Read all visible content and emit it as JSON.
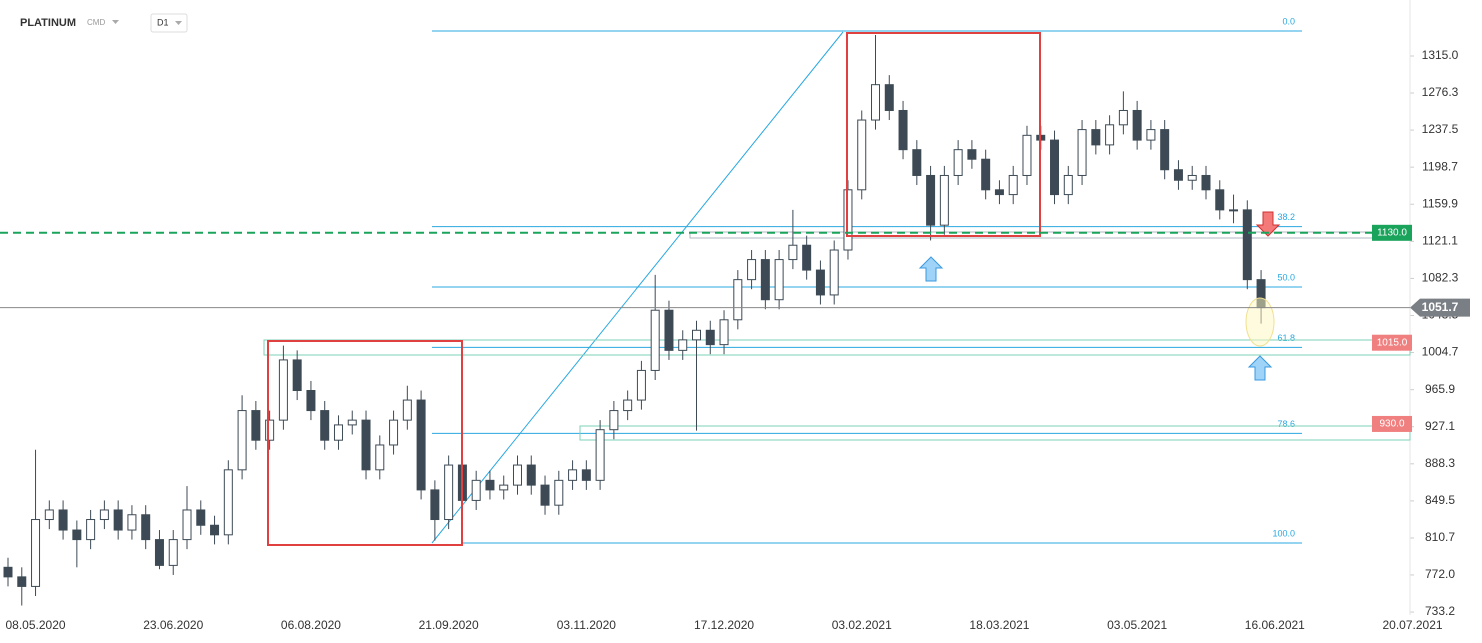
{
  "chart_data": {
    "type": "candlestick",
    "title": "PLATINUM",
    "instrument_type": "CMD",
    "interval": "D1",
    "up_color": "#ffffff",
    "down_color": "#3d4a55",
    "categories": [
      null,
      null,
      "08.05.2020",
      null,
      null,
      null,
      null,
      null,
      null,
      null,
      null,
      null,
      "23.06.2020",
      null,
      null,
      null,
      null,
      null,
      null,
      null,
      null,
      null,
      "06.08.2020",
      null,
      null,
      null,
      null,
      null,
      null,
      null,
      null,
      null,
      "21.09.2020",
      null,
      null,
      null,
      null,
      null,
      null,
      null,
      null,
      null,
      "03.11.2020",
      null,
      null,
      null,
      null,
      null,
      null,
      null,
      null,
      null,
      "17.12.2020",
      null,
      null,
      null,
      null,
      null,
      null,
      null,
      null,
      null,
      "03.02.2021",
      null,
      null,
      null,
      null,
      null,
      null,
      null,
      null,
      null,
      "18.03.2021",
      null,
      null,
      null,
      null,
      null,
      null,
      null,
      null,
      null,
      "03.05.2021",
      null,
      null,
      null,
      null,
      null,
      null,
      null,
      null,
      null,
      "16.06.2021",
      null,
      null,
      null,
      null,
      null,
      null,
      null,
      null,
      null,
      "20.07.2021"
    ],
    "open": [
      780,
      770,
      760,
      830,
      840,
      819,
      809,
      830,
      840,
      819,
      835,
      809,
      782,
      809,
      840,
      824,
      814,
      882,
      944,
      913,
      934,
      997,
      965,
      944,
      913,
      929,
      934,
      882,
      908,
      934,
      955,
      861,
      830,
      887,
      850,
      871,
      861,
      866,
      887,
      866,
      845,
      871,
      882,
      871,
      924,
      944,
      955,
      986,
      1049,
      1007,
      1018,
      1028,
      1013,
      1039,
      1081,
      1102,
      1060,
      1102,
      1117,
      1091,
      1065,
      1112,
      1175,
      1248,
      1285,
      1258,
      1217,
      1190,
      1138,
      1190,
      1217,
      1207,
      1175,
      1170,
      1190,
      1232,
      1227,
      1170,
      1190,
      1238,
      1222,
      1243,
      1258,
      1227,
      1238,
      1196,
      1185,
      1190,
      1175,
      1154,
      1154,
      1081,
      null,
      null,
      null,
      null,
      null,
      null,
      null,
      null,
      null,
      null,
      null
    ],
    "high": [
      790,
      780,
      903,
      850,
      850,
      829,
      840,
      850,
      850,
      845,
      845,
      819,
      819,
      865,
      850,
      834,
      892,
      960,
      954,
      944,
      1012,
      1007,
      975,
      954,
      939,
      944,
      944,
      918,
      944,
      970,
      965,
      871,
      897,
      897,
      881,
      881,
      876,
      897,
      897,
      876,
      881,
      892,
      892,
      934,
      954,
      965,
      996,
      1086,
      1059,
      1028,
      1038,
      1038,
      1049,
      1091,
      1112,
      1112,
      1112,
      1154,
      1127,
      1101,
      1122,
      1185,
      1258,
      1337,
      1295,
      1268,
      1227,
      1200,
      1200,
      1227,
      1227,
      1217,
      1185,
      1200,
      1242,
      1242,
      1237,
      1200,
      1248,
      1248,
      1253,
      1278,
      1268,
      1248,
      1248,
      1206,
      1200,
      1200,
      1185,
      1170,
      1164,
      1091,
      null,
      null,
      null,
      null,
      null,
      null,
      null,
      null,
      null,
      null,
      null
    ],
    "low": [
      760,
      740,
      750,
      820,
      809,
      780,
      799,
      820,
      809,
      809,
      799,
      778,
      772,
      799,
      814,
      804,
      804,
      872,
      903,
      903,
      924,
      955,
      934,
      903,
      903,
      919,
      872,
      872,
      898,
      924,
      851,
      808,
      820,
      840,
      840,
      851,
      851,
      856,
      856,
      835,
      835,
      861,
      861,
      861,
      914,
      934,
      945,
      976,
      997,
      997,
      923,
      1003,
      1003,
      1029,
      1071,
      1050,
      1050,
      1092,
      1081,
      1055,
      1055,
      1102,
      1165,
      1238,
      1248,
      1207,
      1180,
      1122,
      1128,
      1180,
      1197,
      1165,
      1160,
      1160,
      1180,
      1217,
      1160,
      1160,
      1180,
      1212,
      1212,
      1233,
      1217,
      1217,
      1186,
      1175,
      1175,
      1165,
      1144,
      1140,
      1071,
      1035,
      null,
      null,
      null,
      null,
      null,
      null,
      null,
      null,
      null,
      null,
      null
    ],
    "close": [
      770,
      760,
      830,
      840,
      819,
      809,
      830,
      840,
      819,
      835,
      809,
      782,
      809,
      840,
      824,
      814,
      882,
      944,
      913,
      934,
      997,
      965,
      944,
      913,
      929,
      934,
      882,
      908,
      934,
      955,
      861,
      830,
      887,
      850,
      871,
      861,
      866,
      887,
      866,
      845,
      871,
      882,
      871,
      924,
      944,
      955,
      986,
      1049,
      1007,
      1018,
      1028,
      1013,
      1039,
      1081,
      1102,
      1060,
      1102,
      1117,
      1091,
      1065,
      1112,
      1175,
      1248,
      1285,
      1258,
      1217,
      1190,
      1138,
      1190,
      1217,
      1207,
      1175,
      1170,
      1190,
      1232,
      1227,
      1170,
      1190,
      1238,
      1222,
      1243,
      1258,
      1227,
      1238,
      1196,
      1185,
      1190,
      1175,
      1154,
      1154,
      1081,
      1051.7,
      null,
      null,
      null,
      null,
      null,
      null,
      null,
      null,
      null,
      null,
      null
    ],
    "ylim": [
      730.1,
      1373.6
    ],
    "yticks": [
      733.2,
      {
        "value": 772,
        "label": "772.0"
      },
      {
        "value": 810.7,
        "label": "810.7"
      },
      {
        "value": 849.5,
        "label": "849.5"
      },
      {
        "value": 888.3,
        "label": "888.3"
      },
      {
        "value": 927.1,
        "label": "927.1"
      },
      {
        "value": 965.9,
        "label": "965.9"
      },
      {
        "value": 1004.7,
        "label": "1004.7"
      },
      {
        "value": 1043.5,
        "label": "1043.5"
      },
      {
        "value": 1082.3,
        "label": "1082.3"
      },
      {
        "value": 1121.1,
        "label": "1121.1"
      },
      {
        "value": 1159.9,
        "label": "1159.9"
      },
      {
        "value": 1198.7,
        "label": "1198.7"
      },
      {
        "value": 1237.5,
        "label": "1237.5"
      },
      {
        "value": 1276.3,
        "label": "1276.3"
      },
      {
        "value": 1315,
        "label": "1315.0"
      }
    ],
    "last_price": 1051.7,
    "levels": [
      {
        "value": 1130,
        "label": "1130.0",
        "color": "#1aa35b"
      },
      {
        "value": 1015,
        "label": "1015.0",
        "color": "#f08080"
      },
      {
        "value": 930,
        "label": "930.0",
        "color": "#f08080"
      }
    ],
    "fibonacci": [
      {
        "label": "0.0",
        "value": 1341.2
      },
      {
        "label": "38.2",
        "value": 1136.5
      },
      {
        "label": "50.0",
        "value": 1073.3
      },
      {
        "label": "61.8",
        "value": 1010.1
      },
      {
        "label": "78.6",
        "value": 920.1
      },
      {
        "label": "100.0",
        "value": 805.4
      }
    ]
  }
}
